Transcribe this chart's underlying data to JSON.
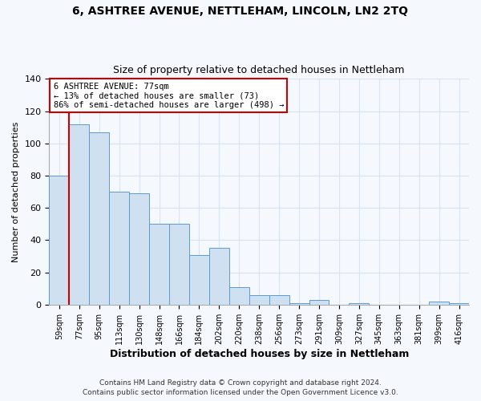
{
  "title": "6, ASHTREE AVENUE, NETTLEHAM, LINCOLN, LN2 2TQ",
  "subtitle": "Size of property relative to detached houses in Nettleham",
  "xlabel": "Distribution of detached houses by size in Nettleham",
  "ylabel": "Number of detached properties",
  "bar_labels": [
    "59sqm",
    "77sqm",
    "95sqm",
    "113sqm",
    "130sqm",
    "148sqm",
    "166sqm",
    "184sqm",
    "202sqm",
    "220sqm",
    "238sqm",
    "256sqm",
    "273sqm",
    "291sqm",
    "309sqm",
    "327sqm",
    "345sqm",
    "363sqm",
    "381sqm",
    "399sqm",
    "416sqm"
  ],
  "bar_values": [
    80,
    112,
    107,
    70,
    69,
    50,
    50,
    31,
    35,
    11,
    6,
    6,
    1,
    3,
    0,
    1,
    0,
    0,
    0,
    2,
    1
  ],
  "bar_color": "#cfe0f0",
  "bar_edge_color": "#5b9bd5",
  "highlight_bar_index": 1,
  "annotation_title": "6 ASHTREE AVENUE: 77sqm",
  "annotation_line1": "← 13% of detached houses are smaller (73)",
  "annotation_line2": "86% of semi-detached houses are larger (498) →",
  "annotation_box_color": "#ffffff",
  "annotation_box_edge_color": "#cc0000",
  "red_line_color": "#cc0000",
  "ylim": [
    0,
    140
  ],
  "yticks": [
    0,
    20,
    40,
    60,
    80,
    100,
    120,
    140
  ],
  "footer1": "Contains HM Land Registry data © Crown copyright and database right 2024.",
  "footer2": "Contains public sector information licensed under the Open Government Licence v3.0.",
  "bg_color": "#f5f8fd",
  "plot_bg_color": "#f5f8fd",
  "grid_color": "#d8e4f0"
}
